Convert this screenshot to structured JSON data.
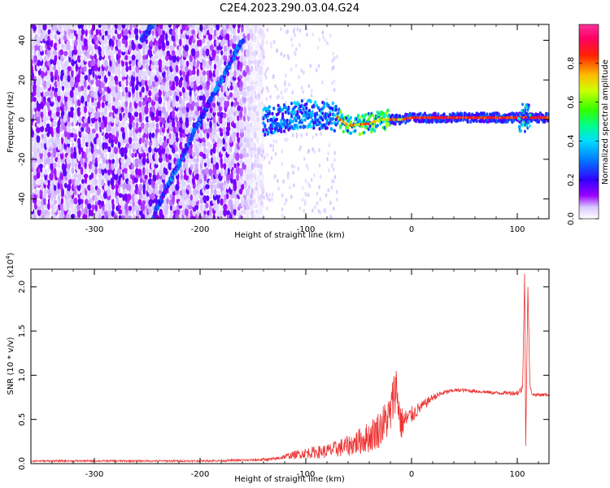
{
  "figure_title": "C2E4.2023.290.03.04.G24",
  "colorbar": {
    "label": "Normalized spectral amplitude",
    "ticks": [
      "0.0",
      "0.2",
      "0.4",
      "0.6",
      "0.8"
    ],
    "tick_values": [
      0.0,
      0.2,
      0.4,
      0.6,
      0.8
    ],
    "range": [
      0,
      1
    ]
  },
  "chart_data": [
    {
      "type": "heatmap",
      "title": "",
      "xlabel": "Height of straight line (km)",
      "ylabel": "Frequency (Hz)",
      "xlim": [
        -360,
        130
      ],
      "ylim": [
        -50,
        48
      ],
      "x_ticks": [
        -300,
        -200,
        -100,
        0,
        100
      ],
      "x_tick_labels": [
        "-300",
        "-200",
        "-100",
        "0",
        "100"
      ],
      "y_ticks": [
        40,
        20,
        0,
        -20,
        -40
      ],
      "y_tick_labels": [
        "40",
        "20",
        "0",
        "-20",
        "-40"
      ],
      "features": [
        {
          "kind": "noise_field",
          "x_range": [
            -360,
            -140
          ],
          "y_range": [
            -50,
            48
          ]
        },
        {
          "kind": "diagonal_streak",
          "points": [
            [
              -245,
              -50
            ],
            [
              -200,
              0
            ],
            [
              -160,
              40
            ]
          ]
        },
        {
          "kind": "diagonal_streak",
          "points": [
            [
              -255,
              40
            ],
            [
              -245,
              48
            ]
          ]
        },
        {
          "kind": "signal_band",
          "x_range": [
            -140,
            130
          ],
          "center_hz": [
            [
              -140,
              -1
            ],
            [
              -100,
              3
            ],
            [
              -70,
              1
            ],
            [
              -60,
              -3
            ],
            [
              -40,
              -2
            ],
            [
              -30,
              0
            ],
            [
              -10,
              0
            ],
            [
              0,
              1
            ],
            [
              130,
              1
            ]
          ]
        }
      ]
    },
    {
      "type": "line",
      "title": "",
      "xlabel": "Height of straight line (km)",
      "ylabel": "SNR (10 * v/v)",
      "y_multiplier_label": "(x10",
      "y_multiplier_exp": "4",
      "y_multiplier_close": ")",
      "xlim": [
        -360,
        130
      ],
      "ylim": [
        0,
        2.2
      ],
      "x_ticks": [
        -300,
        -200,
        -100,
        0,
        100
      ],
      "x_tick_labels": [
        "-300",
        "-200",
        "-100",
        "0",
        "100"
      ],
      "y_ticks": [
        0.0,
        0.5,
        1.0,
        1.5,
        2.0
      ],
      "y_tick_labels": [
        "0.0",
        "0.5",
        "1.0",
        "1.5",
        "2.0"
      ],
      "series": [
        {
          "color": "#ee3333",
          "x": [
            -360,
            -300,
            -250,
            -200,
            -150,
            -130,
            -120,
            -100,
            -80,
            -60,
            -40,
            -30,
            -20,
            -15,
            -10,
            -5,
            0,
            5,
            10,
            20,
            30,
            40,
            50,
            60,
            70,
            80,
            90,
            100,
            105,
            107,
            108,
            110,
            112,
            115,
            120,
            130
          ],
          "y": [
            0.03,
            0.03,
            0.03,
            0.03,
            0.04,
            0.05,
            0.08,
            0.12,
            0.14,
            0.2,
            0.3,
            0.4,
            0.55,
            0.9,
            0.45,
            0.5,
            0.55,
            0.6,
            0.65,
            0.75,
            0.8,
            0.83,
            0.83,
            0.82,
            0.81,
            0.8,
            0.8,
            0.8,
            0.85,
            2.15,
            0.2,
            2.0,
            0.85,
            0.78,
            0.78,
            0.78
          ],
          "noise_amplitude": [
            0.01,
            0.01,
            0.01,
            0.01,
            0.015,
            0.02,
            0.03,
            0.06,
            0.08,
            0.12,
            0.18,
            0.22,
            0.25,
            0.3,
            0.2,
            0.12,
            0.1,
            0.08,
            0.06,
            0.04,
            0.03,
            0.02,
            0.02,
            0.02,
            0.02,
            0.02,
            0.02,
            0.03,
            0.05,
            0.0,
            0.0,
            0.0,
            0.04,
            0.02,
            0.02,
            0.02
          ]
        }
      ]
    }
  ]
}
